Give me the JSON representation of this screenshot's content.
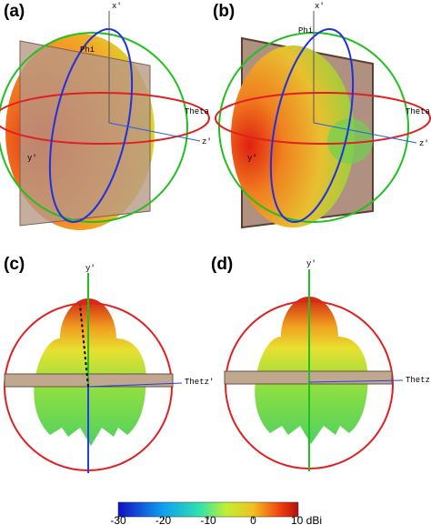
{
  "panels": [
    {
      "label": "(a)",
      "axes": [
        "x'",
        "Phi",
        "Theta",
        "z'",
        "y'"
      ]
    },
    {
      "label": "(b)",
      "axes": [
        "x'",
        "Phi",
        "Theta",
        "z'",
        "y'"
      ]
    },
    {
      "label": "(c)",
      "axes": [
        "y'",
        "Thetz'"
      ]
    },
    {
      "label": "(d)",
      "axes": [
        "y'",
        "Thetz'"
      ]
    }
  ],
  "colorbar": {
    "range": [
      -30,
      10
    ],
    "ticks": [
      -30,
      -20,
      -10,
      0,
      {
        "value": 10,
        "label": "10 dBi"
      }
    ]
  }
}
